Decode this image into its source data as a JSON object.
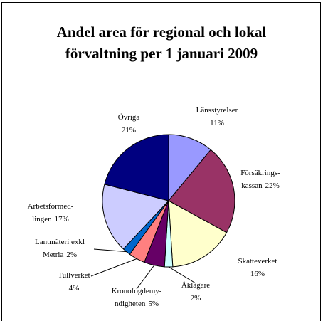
{
  "chart_data": {
    "type": "pie",
    "title": "Andel area för regional och lokal förvaltning per 1 januari 2009",
    "categories": [
      "Länsstyrelser",
      "Försäkrings-\nkassan",
      "Skatteverket",
      "Åklagare",
      "Kronofogdemy-\nndigheten",
      "Tullverket",
      "Lantmäteri exkl\nMetria",
      "Arbetsförmed-\nlingen",
      "Övriga"
    ],
    "values": [
      11,
      22,
      16,
      2,
      5,
      4,
      2,
      17,
      21
    ],
    "value_labels": [
      "11%",
      "22%",
      "16%",
      "2%",
      "5%",
      "4%",
      "2%",
      "17%",
      "21%"
    ],
    "colors": [
      "#9999ff",
      "#993366",
      "#ffffcc",
      "#ccffff",
      "#660066",
      "#ff8080",
      "#0066cc",
      "#ccccff",
      "#000080"
    ]
  }
}
